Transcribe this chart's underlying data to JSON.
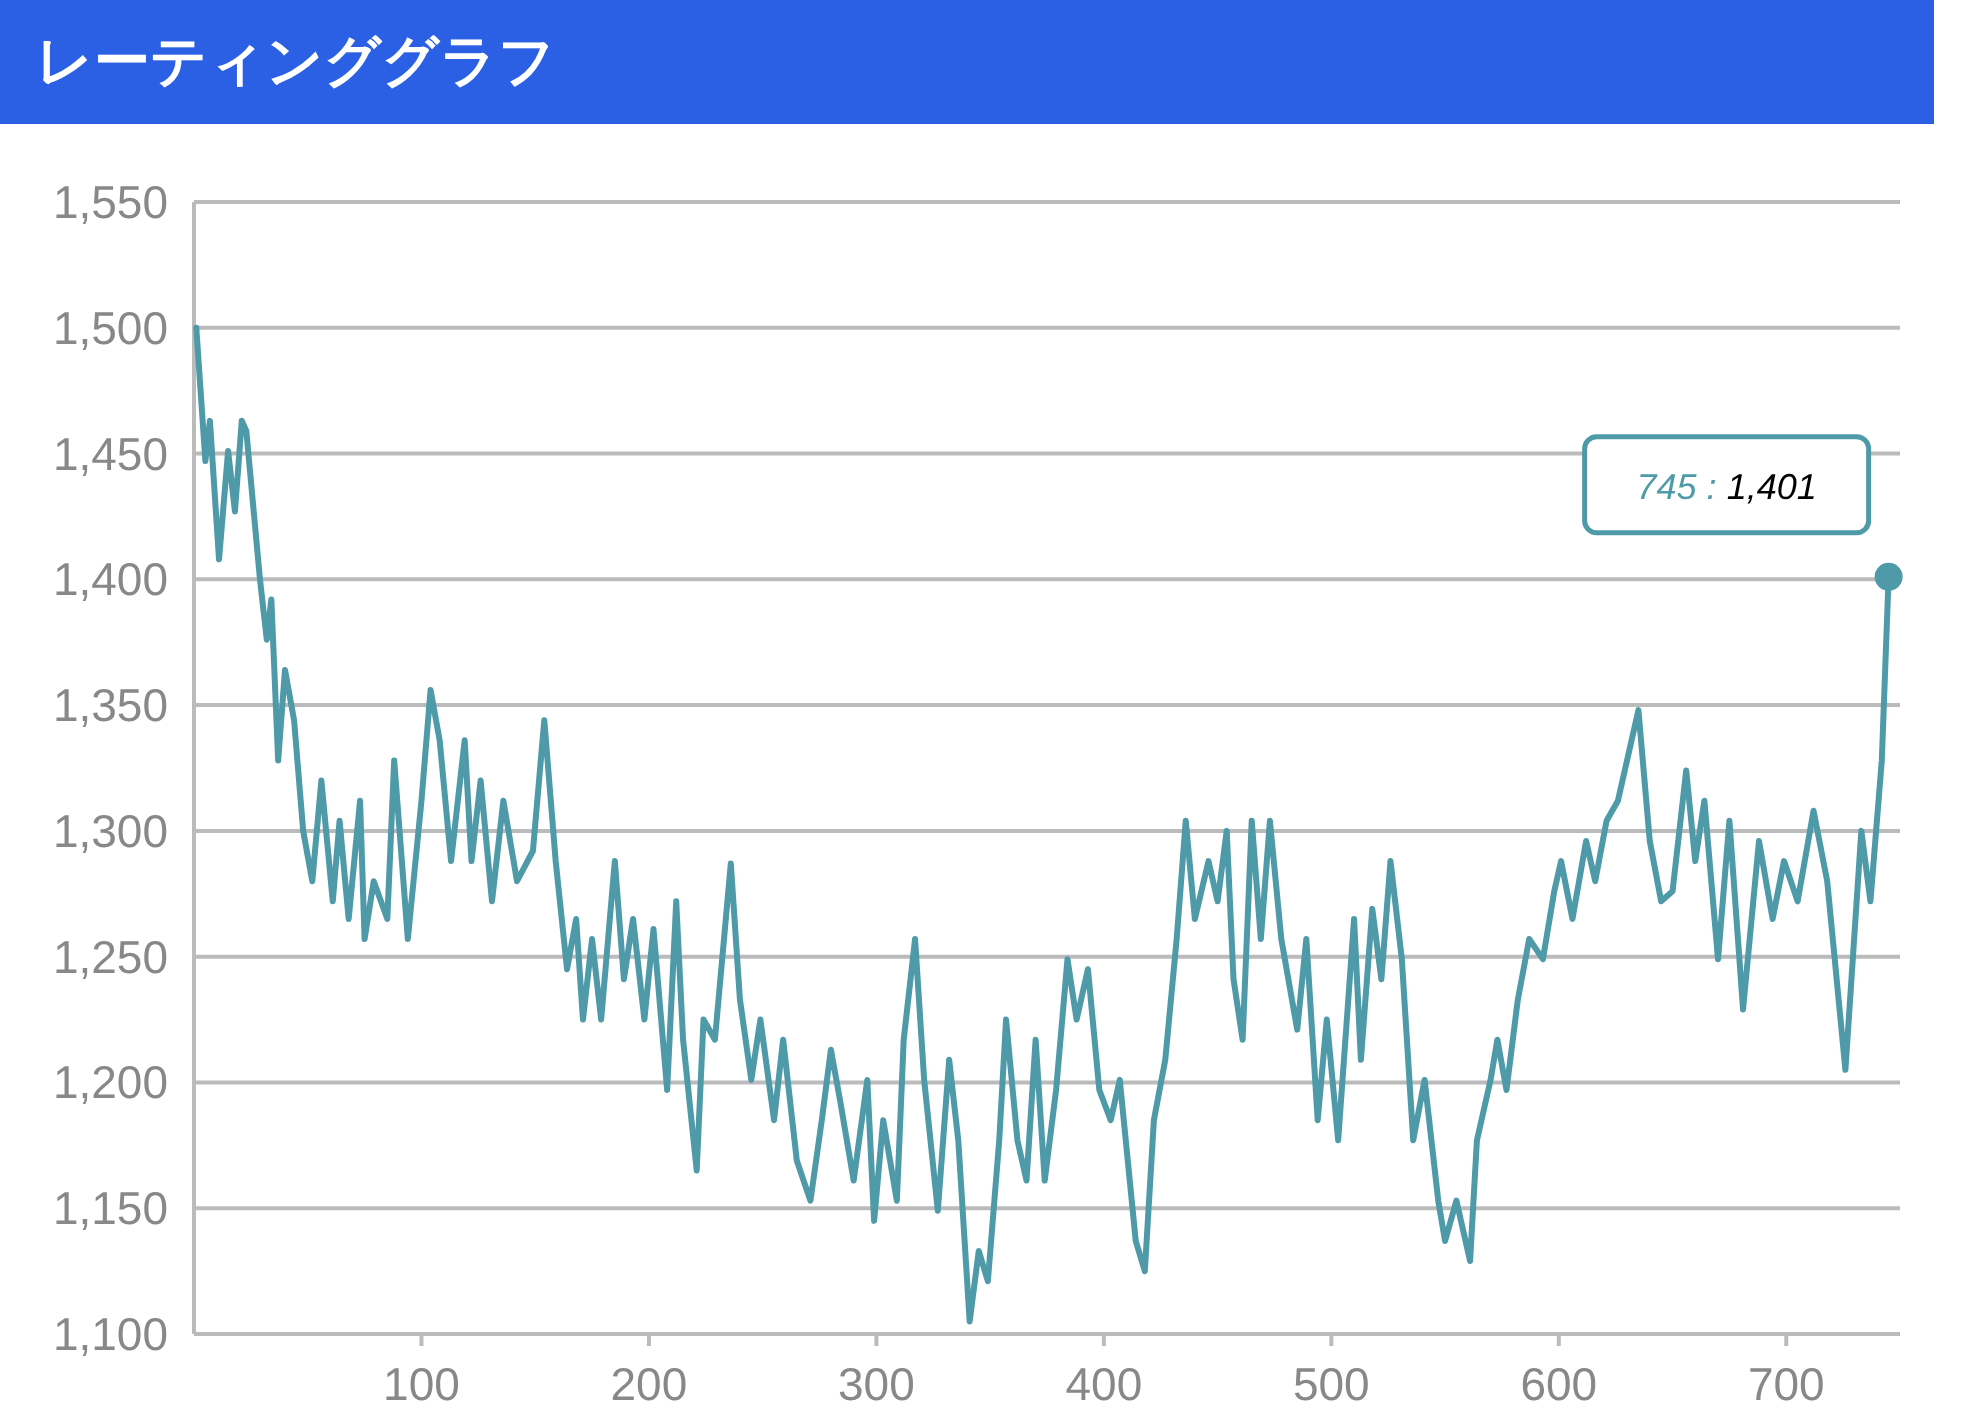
{
  "chart_data": {
    "type": "line",
    "title": "レーティンググラフ",
    "xlim": [
      0,
      750
    ],
    "ylim": [
      1100,
      1550
    ],
    "xticks": [
      100,
      200,
      300,
      400,
      500,
      600,
      700
    ],
    "yticks": [
      {
        "value": 1100,
        "label": "1,100"
      },
      {
        "value": 1150,
        "label": "1,150"
      },
      {
        "value": 1200,
        "label": "1,200"
      },
      {
        "value": 1250,
        "label": "1,250"
      },
      {
        "value": 1300,
        "label": "1,300"
      },
      {
        "value": 1350,
        "label": "1,350"
      },
      {
        "value": 1400,
        "label": "1,400"
      },
      {
        "value": 1450,
        "label": "1,450"
      },
      {
        "value": 1500,
        "label": "1,500"
      },
      {
        "value": 1550,
        "label": "1,550"
      }
    ],
    "grid": "y",
    "marker": "none",
    "line_style": "solid",
    "annotations": [
      {
        "text": "745 : 1,401",
        "x": 745,
        "y": 1401
      }
    ],
    "series": [
      {
        "color": "#4e9aa8",
        "x": [
          1,
          5,
          7,
          11,
          15,
          18,
          21,
          23,
          29,
          32,
          34,
          37,
          40,
          44,
          48,
          52,
          56,
          61,
          64,
          68,
          73,
          75,
          79,
          85,
          88,
          94,
          100,
          104,
          108,
          113,
          119,
          122,
          126,
          131,
          136,
          142,
          149,
          154,
          159,
          164,
          168,
          171,
          175,
          179,
          185,
          189,
          193,
          198,
          202,
          208,
          212,
          215,
          221,
          224,
          229,
          236,
          240,
          245,
          249,
          255,
          259,
          265,
          271,
          276,
          280,
          284,
          290,
          296,
          299,
          303,
          309,
          312,
          317,
          321,
          327,
          332,
          336,
          341,
          345,
          349,
          354,
          357,
          362,
          366,
          370,
          374,
          379,
          384,
          388,
          393,
          398,
          403,
          407,
          414,
          418,
          422,
          427,
          432,
          436,
          440,
          446,
          450,
          454,
          457,
          461,
          465,
          469,
          473,
          478,
          485,
          489,
          494,
          498,
          503,
          510,
          513,
          518,
          522,
          526,
          531,
          536,
          541,
          547,
          550,
          555,
          561,
          564,
          570,
          573,
          577,
          582,
          587,
          593,
          598,
          601,
          606,
          612,
          616,
          621,
          626,
          635,
          640,
          645,
          650,
          656,
          660,
          664,
          670,
          675,
          681,
          688,
          694,
          699,
          705,
          712,
          718,
          726,
          733,
          737,
          742,
          745
        ],
        "values": [
          1500,
          1447,
          1463,
          1408,
          1451,
          1427,
          1463,
          1459,
          1400,
          1376,
          1392,
          1328,
          1364,
          1344,
          1300,
          1280,
          1320,
          1272,
          1304,
          1265,
          1312,
          1257,
          1280,
          1265,
          1328,
          1257,
          1312,
          1356,
          1336,
          1288,
          1336,
          1288,
          1320,
          1272,
          1312,
          1280,
          1292,
          1344,
          1288,
          1245,
          1265,
          1225,
          1257,
          1225,
          1288,
          1241,
          1265,
          1225,
          1261,
          1197,
          1272,
          1217,
          1165,
          1225,
          1217,
          1287,
          1233,
          1201,
          1225,
          1185,
          1217,
          1169,
          1153,
          1185,
          1213,
          1193,
          1161,
          1201,
          1145,
          1185,
          1153,
          1217,
          1257,
          1201,
          1149,
          1209,
          1177,
          1105,
          1133,
          1121,
          1177,
          1225,
          1177,
          1161,
          1217,
          1161,
          1197,
          1249,
          1225,
          1245,
          1197,
          1185,
          1201,
          1137,
          1125,
          1185,
          1209,
          1257,
          1304,
          1265,
          1288,
          1272,
          1300,
          1241,
          1217,
          1304,
          1257,
          1304,
          1257,
          1221,
          1257,
          1185,
          1225,
          1177,
          1265,
          1209,
          1269,
          1241,
          1288,
          1249,
          1177,
          1201,
          1153,
          1137,
          1153,
          1129,
          1177,
          1201,
          1217,
          1197,
          1233,
          1257,
          1249,
          1276,
          1288,
          1265,
          1296,
          1280,
          1304,
          1312,
          1348,
          1296,
          1272,
          1276,
          1324,
          1288,
          1312,
          1249,
          1304,
          1229,
          1296,
          1265,
          1288,
          1272,
          1308,
          1280,
          1205,
          1300,
          1272,
          1328,
          1401
        ]
      }
    ]
  }
}
